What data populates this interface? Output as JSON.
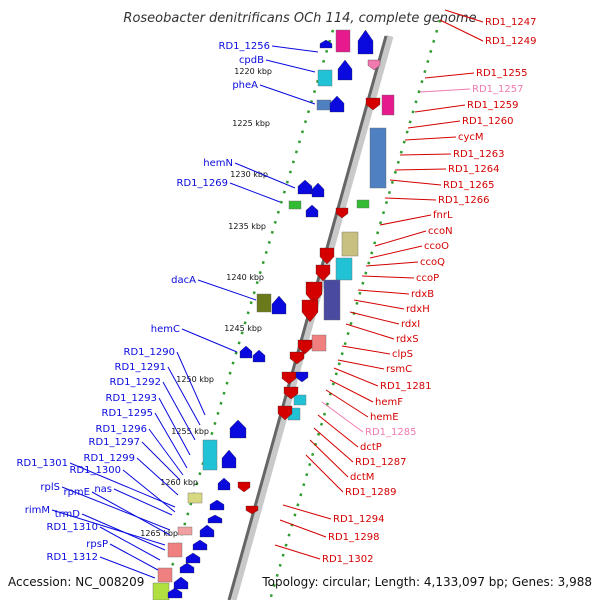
{
  "title": "Roseobacter denitrificans OCh 114, complete genome",
  "accession": "Accession: NC_008209",
  "topology": "Topology: circular; Length: 4,133,097 bp; Genes: 3,988",
  "colors": {
    "forward": "#0a0adf",
    "reverse": "#d40000",
    "pseudo": "#f07ab0",
    "tick": "#2e9b2e"
  },
  "kbp_ticks": [
    {
      "value": 1220,
      "label": "1220 kbp"
    },
    {
      "value": 1225,
      "label": "1225 kbp"
    },
    {
      "value": 1230,
      "label": "1230 kbp"
    },
    {
      "value": 1235,
      "label": "1235 kbp"
    },
    {
      "value": 1240,
      "label": "1240 kbp"
    },
    {
      "value": 1245,
      "label": "1245 kbp"
    },
    {
      "value": 1250,
      "label": "1250 kbp"
    },
    {
      "value": 1255,
      "label": "1255 kbp"
    },
    {
      "value": 1260,
      "label": "1260 kbp"
    },
    {
      "value": 1265,
      "label": "1265 kbp"
    }
  ],
  "genes_left": [
    "RD1_1256",
    "cpdB",
    "pheA",
    "hemN",
    "RD1_1269",
    "dacA",
    "hemC",
    "RD1_1290",
    "RD1_1291",
    "RD1_1292",
    "RD1_1293",
    "RD1_1295",
    "RD1_1296",
    "RD1_1297",
    "RD1_1299",
    "RD1_1301",
    "RD1_1300",
    "rplS",
    "rpmE",
    "nas",
    "rimM",
    "trmD",
    "RD1_1310",
    "rpsP",
    "RD1_1312"
  ],
  "genes_right": [
    "RD1_1247",
    "RD1_1249",
    "RD1_1255",
    "RD1_1257",
    "RD1_1259",
    "RD1_1260",
    "cycM",
    "RD1_1263",
    "RD1_1264",
    "RD1_1265",
    "RD1_1266",
    "fnrL",
    "ccoN",
    "ccoO",
    "ccoQ",
    "ccoP",
    "rdxB",
    "rdxH",
    "rdxI",
    "rdxS",
    "clpS",
    "rsmC",
    "RD1_1281",
    "hemF",
    "hemE",
    "RD1_1285",
    "dctP",
    "RD1_1287",
    "dctM",
    "RD1_1289",
    "RD1_1294",
    "RD1_1298",
    "RD1_1302"
  ]
}
